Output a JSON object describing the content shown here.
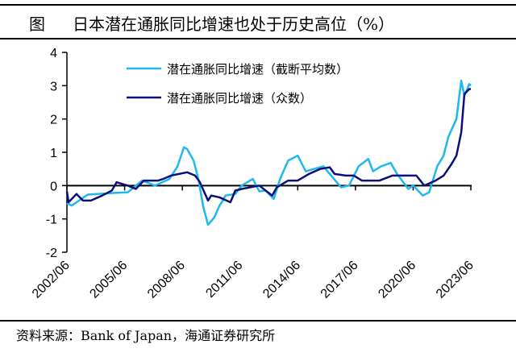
{
  "title": {
    "prefix": "图",
    "text": "日本潜在通胀同比增速也处于历史高位（%）"
  },
  "source": "资料来源：Bank of Japan，海通证券研究所",
  "chart_data": {
    "type": "line",
    "title": "日本潜在通胀同比增速也处于历史高位（%）",
    "xlabel": "",
    "ylabel": "",
    "ylim": [
      -2,
      4
    ],
    "yticks": [
      "4",
      "3",
      "2",
      "1",
      "0",
      "-1",
      "-2"
    ],
    "ytick_values": [
      4,
      3,
      2,
      1,
      0,
      -1,
      -2
    ],
    "xlim": [
      "2002/06",
      "2023/06"
    ],
    "xticks": [
      "2002/06",
      "2005/06",
      "2008/06",
      "2011/06",
      "2014/06",
      "2017/06",
      "2020/06",
      "2023/06"
    ],
    "grid": false,
    "legend_position": "top-center",
    "series": [
      {
        "name": "潜在通胀同比增速（截断平均数）",
        "color": "#1EB8EE",
        "points": [
          [
            "2002/06",
            -0.53
          ],
          [
            "2002/09",
            -0.6
          ],
          [
            "2003/07",
            -0.27
          ],
          [
            "2004/12",
            -0.22
          ],
          [
            "2005/08",
            -0.2
          ],
          [
            "2006/05",
            0.15
          ],
          [
            "2007/01",
            0.0
          ],
          [
            "2007/10",
            0.2
          ],
          [
            "2008/03",
            0.58
          ],
          [
            "2008/07",
            1.15
          ],
          [
            "2008/09",
            1.1
          ],
          [
            "2009/01",
            0.75
          ],
          [
            "2009/04",
            0.2
          ],
          [
            "2009/07",
            -0.62
          ],
          [
            "2009/10",
            -1.18
          ],
          [
            "2010/02",
            -0.95
          ],
          [
            "2010/05",
            -0.62
          ],
          [
            "2010/09",
            -0.3
          ],
          [
            "2011/03",
            -0.25
          ],
          [
            "2011/07",
            0.0
          ],
          [
            "2012/02",
            0.2
          ],
          [
            "2012/06",
            -0.17
          ],
          [
            "2012/10",
            -0.15
          ],
          [
            "2013/03",
            -0.4
          ],
          [
            "2013/07",
            0.2
          ],
          [
            "2013/12",
            0.75
          ],
          [
            "2014/06",
            0.9
          ],
          [
            "2014/11",
            0.43
          ],
          [
            "2015/04",
            0.5
          ],
          [
            "2015/10",
            0.58
          ],
          [
            "2016/02",
            0.35
          ],
          [
            "2016/09",
            -0.05
          ],
          [
            "2017/02",
            0.0
          ],
          [
            "2017/08",
            0.58
          ],
          [
            "2018/02",
            0.8
          ],
          [
            "2018/05",
            0.43
          ],
          [
            "2018/10",
            0.58
          ],
          [
            "2019/04",
            0.68
          ],
          [
            "2019/08",
            0.35
          ],
          [
            "2020/03",
            -0.1
          ],
          [
            "2020/06",
            0.0
          ],
          [
            "2020/12",
            -0.3
          ],
          [
            "2021/04",
            -0.2
          ],
          [
            "2021/09",
            0.58
          ],
          [
            "2022/01",
            0.9
          ],
          [
            "2022/04",
            1.47
          ],
          [
            "2022/09",
            2.0
          ],
          [
            "2022/12",
            3.15
          ],
          [
            "2023/02",
            2.7
          ],
          [
            "2023/05",
            3.05
          ],
          [
            "2023/06",
            3.0
          ]
        ]
      },
      {
        "name": "潜在通胀同比增速（众数）",
        "color": "#0B0F7A",
        "points": [
          [
            "2002/06",
            -0.17
          ],
          [
            "2002/07",
            -0.5
          ],
          [
            "2002/12",
            -0.25
          ],
          [
            "2003/04",
            -0.45
          ],
          [
            "2003/09",
            -0.45
          ],
          [
            "2004/04",
            -0.3
          ],
          [
            "2004/10",
            -0.15
          ],
          [
            "2005/01",
            0.1
          ],
          [
            "2005/08",
            0.0
          ],
          [
            "2006/01",
            -0.1
          ],
          [
            "2006/06",
            0.15
          ],
          [
            "2007/03",
            0.15
          ],
          [
            "2007/06",
            0.2
          ],
          [
            "2007/11",
            0.3
          ],
          [
            "2008/09",
            0.4
          ],
          [
            "2009/02",
            0.3
          ],
          [
            "2009/05",
            0.1
          ],
          [
            "2009/10",
            -0.45
          ],
          [
            "2009/12",
            -0.3
          ],
          [
            "2010/05",
            -0.35
          ],
          [
            "2010/12",
            -0.5
          ],
          [
            "2011/03",
            -0.15
          ],
          [
            "2011/07",
            -0.1
          ],
          [
            "2012/06",
            0.0
          ],
          [
            "2013/02",
            -0.3
          ],
          [
            "2013/05",
            -0.05
          ],
          [
            "2013/12",
            0.15
          ],
          [
            "2014/06",
            0.15
          ],
          [
            "2015/01",
            0.35
          ],
          [
            "2015/08",
            0.5
          ],
          [
            "2016/02",
            0.55
          ],
          [
            "2016/05",
            0.35
          ],
          [
            "2016/12",
            0.3
          ],
          [
            "2017/05",
            0.3
          ],
          [
            "2017/10",
            0.15
          ],
          [
            "2018/09",
            0.15
          ],
          [
            "2019/05",
            0.3
          ],
          [
            "2020/08",
            0.3
          ],
          [
            "2021/01",
            0.0
          ],
          [
            "2021/08",
            0.15
          ],
          [
            "2022/01",
            0.3
          ],
          [
            "2022/06",
            0.65
          ],
          [
            "2022/09",
            0.9
          ],
          [
            "2022/12",
            1.6
          ],
          [
            "2023/02",
            2.75
          ],
          [
            "2023/05",
            2.9
          ],
          [
            "2023/06",
            2.9
          ]
        ]
      }
    ]
  }
}
